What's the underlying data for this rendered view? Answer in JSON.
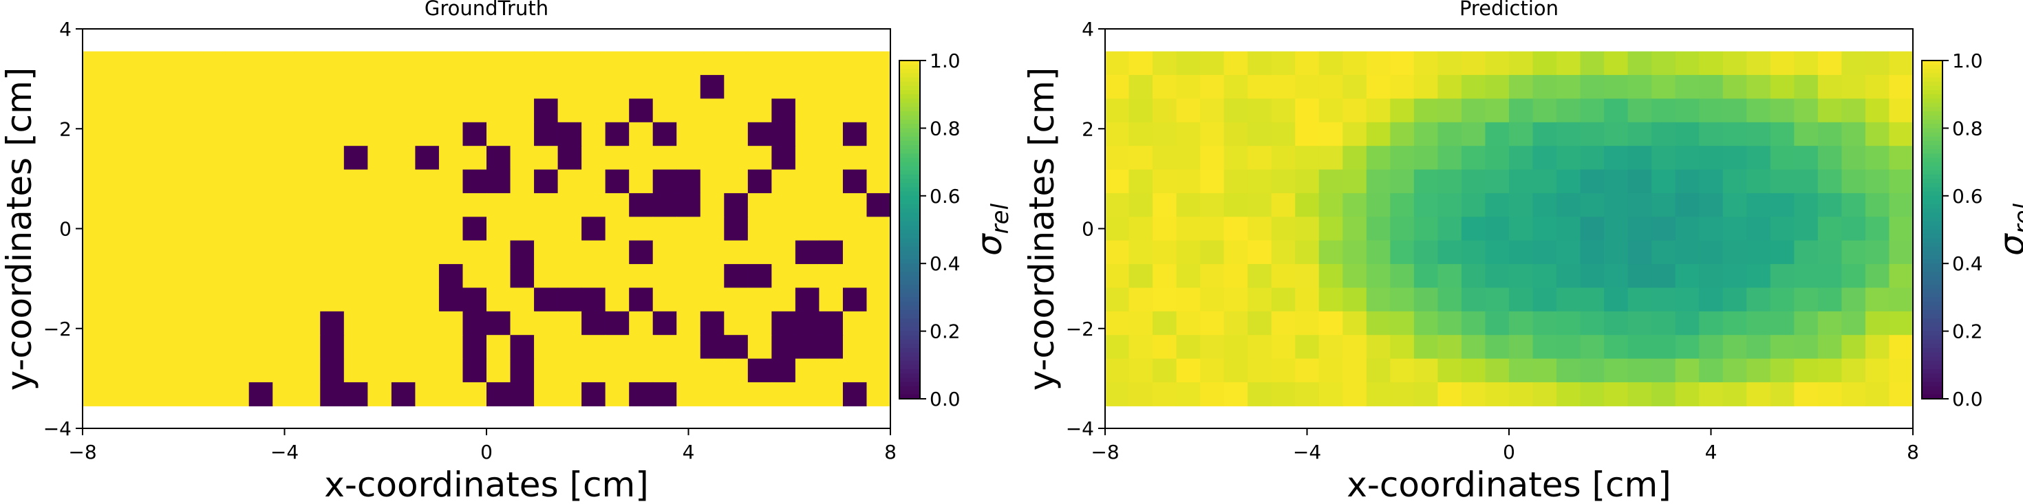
{
  "chart_data": [
    {
      "type": "heatmap",
      "title": "GroundTruth",
      "xlabel": "x-coordinates [cm]",
      "ylabel": "y-coordinates [cm]",
      "xlim": [
        -8,
        8
      ],
      "ylim": [
        -4,
        4
      ],
      "extent": [
        -8,
        8,
        -3.55,
        3.55
      ],
      "xticks": [
        "−8",
        "−4",
        "0",
        "4",
        "8"
      ],
      "yticks": [
        "−4",
        "−2",
        "0",
        "2",
        "4"
      ],
      "colorbar": {
        "label_main": "σ",
        "label_sub": "rel",
        "range": [
          0,
          1
        ],
        "ticks": [
          "0.0",
          "0.2",
          "0.4",
          "0.6",
          "0.8",
          "1.0"
        ],
        "colormap": "viridis"
      },
      "grid": {
        "cols": 34,
        "rows": 15,
        "encoding": "row-major top-to-bottom; '#' = 0.0 (void), '.' = 1.0 (material)",
        "cells": [
          "..................................",
          "..........................#.......",
          "...................#...#.....#....",
          "................#..##.#.#...##..#.",
          "...........#..#..#..#........#....",
          "................##.#..#.##..#...#.",
          ".......................###.#.....#",
          "................#....#.....#......",
          "..................#....#......##..",
          "...............#..#........##.....",
          "...............##..###.#......#.#.",
          "..........#.....##...##.#.#..###..",
          "..........#.....#.#.......##.###..",
          "..........#.....#.#.........##....",
          ".......#..##.#...##..#.##.......#."
        ]
      }
    },
    {
      "type": "heatmap",
      "title": "Prediction",
      "xlabel": "x-coordinates [cm]",
      "ylabel": "y-coordinates [cm]",
      "xlim": [
        -8,
        8
      ],
      "ylim": [
        -4,
        4
      ],
      "extent": [
        -8,
        8,
        -3.55,
        3.55
      ],
      "xticks": [
        "−8",
        "−4",
        "0",
        "4",
        "8"
      ],
      "yticks": [
        "−4",
        "−2",
        "0",
        "2",
        "4"
      ],
      "colorbar": {
        "label_main": "σ",
        "label_sub": "rel",
        "range": [
          0,
          1
        ],
        "ticks": [
          "0.0",
          "0.2",
          "0.4",
          "0.6",
          "0.8",
          "1.0"
        ],
        "colormap": "viridis"
      },
      "grid": {
        "cols": 34,
        "rows": 15,
        "description": "near 1.0 at edges, lowest (~0.55) in a central elliptical region around x=0..5, y=-2.5..2.5",
        "center_x": 2.5,
        "center_y": 0,
        "radius_x": 6,
        "radius_y": 3.2,
        "min_value": 0.55
      }
    }
  ]
}
